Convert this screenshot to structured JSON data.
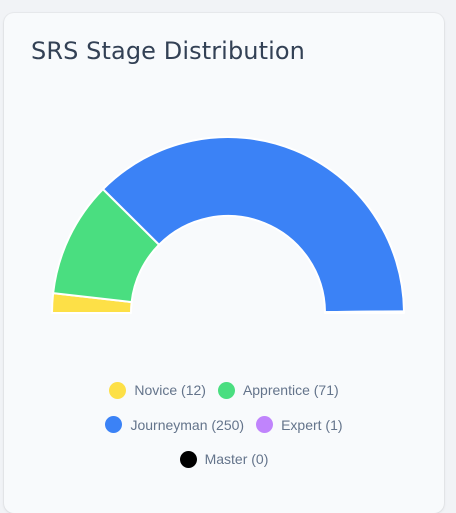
{
  "card": {
    "title": "SRS Stage Distribution"
  },
  "chart_data": {
    "type": "pie",
    "variant": "semi-donut",
    "title": "SRS Stage Distribution",
    "categories": [
      "Novice",
      "Apprentice",
      "Journeyman",
      "Expert",
      "Master"
    ],
    "values": [
      12,
      71,
      250,
      1,
      0
    ],
    "colors": [
      "#fde047",
      "#4ade80",
      "#3b82f6",
      "#c084fc",
      "#000000"
    ],
    "legend_labels": [
      "Novice (12)",
      "Apprentice (71)",
      "Journeyman (250)",
      "Expert (1)",
      "Master (0)"
    ],
    "legend_position": "bottom"
  }
}
